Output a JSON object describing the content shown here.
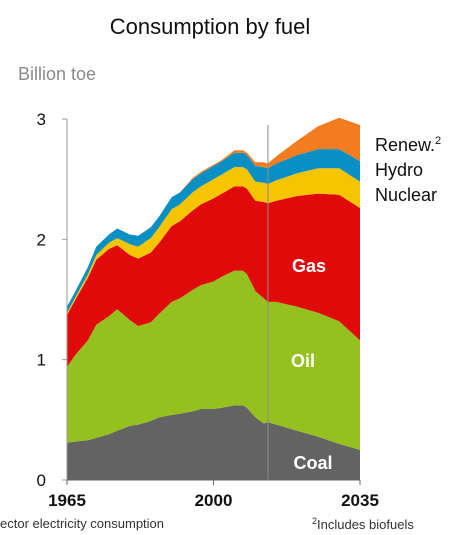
{
  "chart_data": {
    "type": "area",
    "title": "Consumption by fuel",
    "ylabel": "Billion toe",
    "x": [
      1965,
      1967,
      1970,
      1972,
      1975,
      1977,
      1980,
      1982,
      1985,
      1987,
      1990,
      1992,
      1995,
      1997,
      2000,
      2002,
      2005,
      2007,
      2008,
      2010,
      2012,
      2013,
      2015,
      2020,
      2025,
      2030,
      2035
    ],
    "xticks": [
      "1965",
      "2000",
      "2035"
    ],
    "xlim": [
      1965,
      2035
    ],
    "ylim": [
      0,
      3
    ],
    "yticks": [
      "0",
      "1",
      "2",
      "3"
    ],
    "projection_start": 2013,
    "series": [
      {
        "name": "Coal",
        "color": "#636363",
        "values": [
          0.31,
          0.32,
          0.33,
          0.35,
          0.38,
          0.41,
          0.45,
          0.46,
          0.49,
          0.52,
          0.54,
          0.55,
          0.57,
          0.59,
          0.59,
          0.6,
          0.62,
          0.62,
          0.6,
          0.52,
          0.47,
          0.48,
          0.46,
          0.41,
          0.36,
          0.3,
          0.25
        ]
      },
      {
        "name": "Oil",
        "color": "#95c11f",
        "values": [
          0.63,
          0.72,
          0.83,
          0.94,
          0.98,
          1.01,
          0.88,
          0.82,
          0.82,
          0.86,
          0.94,
          0.96,
          1.01,
          1.03,
          1.06,
          1.09,
          1.12,
          1.12,
          1.11,
          1.05,
          1.04,
          1.0,
          1.02,
          1.03,
          1.03,
          1.02,
          0.91
        ]
      },
      {
        "name": "Gas",
        "color": "#e10a0a",
        "values": [
          0.43,
          0.46,
          0.52,
          0.54,
          0.56,
          0.53,
          0.54,
          0.56,
          0.58,
          0.59,
          0.63,
          0.64,
          0.66,
          0.67,
          0.69,
          0.69,
          0.7,
          0.7,
          0.71,
          0.75,
          0.8,
          0.82,
          0.84,
          0.92,
          0.99,
          1.05,
          1.1
        ]
      },
      {
        "name": "Nuclear",
        "color": "#f6c400",
        "values": [
          0.02,
          0.02,
          0.03,
          0.04,
          0.05,
          0.06,
          0.09,
          0.1,
          0.12,
          0.13,
          0.14,
          0.14,
          0.15,
          0.15,
          0.16,
          0.16,
          0.16,
          0.16,
          0.16,
          0.16,
          0.16,
          0.16,
          0.17,
          0.19,
          0.21,
          0.22,
          0.22
        ]
      },
      {
        "name": "Hydro",
        "color": "#0a8fc4",
        "values": [
          0.05,
          0.05,
          0.06,
          0.07,
          0.07,
          0.08,
          0.08,
          0.09,
          0.09,
          0.09,
          0.1,
          0.1,
          0.11,
          0.11,
          0.11,
          0.11,
          0.12,
          0.12,
          0.12,
          0.13,
          0.13,
          0.13,
          0.14,
          0.15,
          0.16,
          0.16,
          0.17
        ]
      },
      {
        "name": "Renew.",
        "color": "#f47c20",
        "values": [
          0.0,
          0.0,
          0.0,
          0.0,
          0.0,
          0.0,
          0.0,
          0.0,
          0.0,
          0.0,
          0.0,
          0.0,
          0.01,
          0.01,
          0.01,
          0.01,
          0.02,
          0.02,
          0.02,
          0.03,
          0.04,
          0.04,
          0.06,
          0.12,
          0.19,
          0.26,
          0.3
        ]
      }
    ],
    "legend": {
      "renew_label": "Renew.",
      "renew_sup": "2",
      "hydro_label": "Hydro",
      "nuclear_label": "Nuclear",
      "gas_label": "Gas",
      "oil_label": "Oil",
      "coal_label": "Coal"
    }
  },
  "footnotes": {
    "left": "ector electricity consumption",
    "right_sup": "2",
    "right": "Includes biofuels"
  }
}
